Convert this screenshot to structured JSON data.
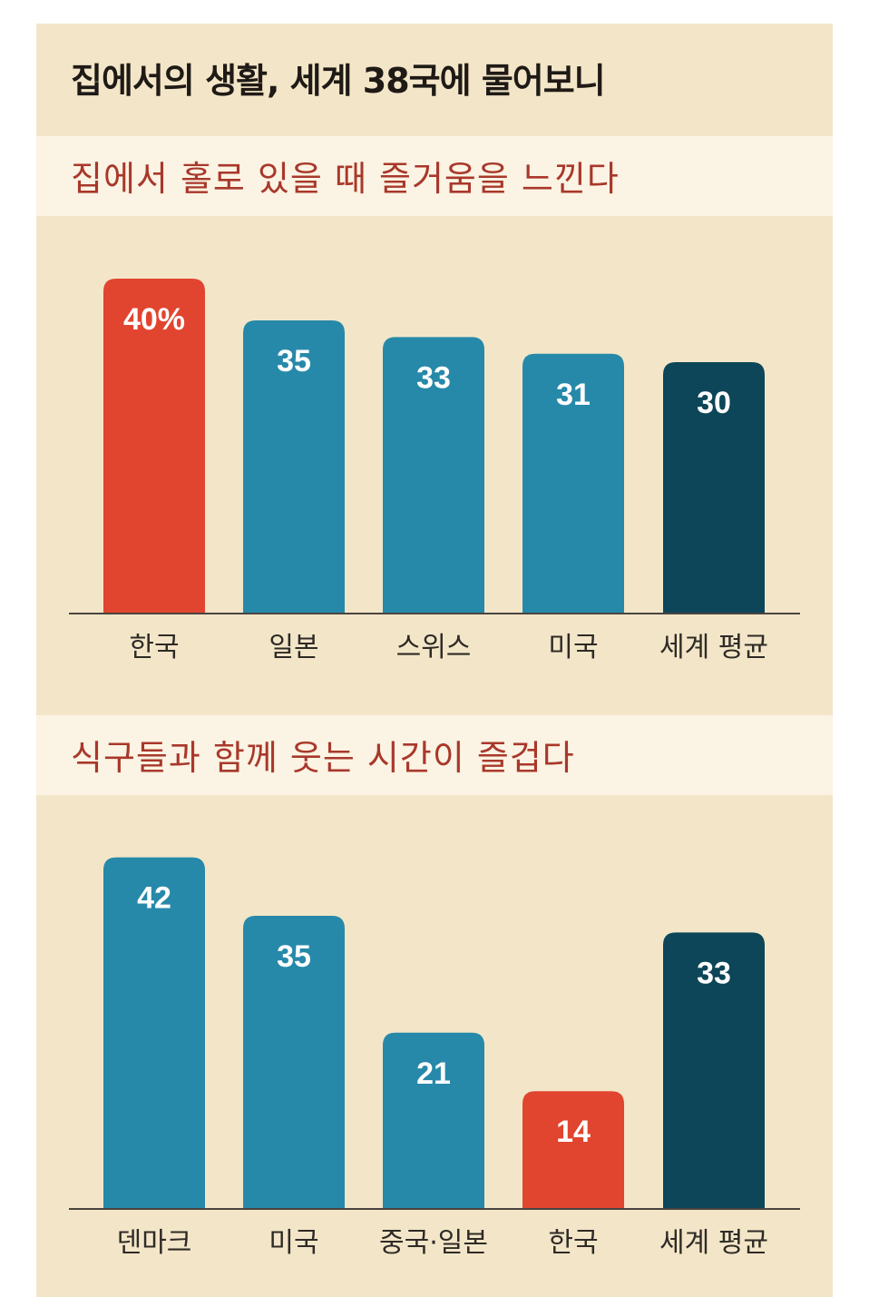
{
  "title": "집에서의 생활, 세계 38국에 물어보니",
  "colors": {
    "highlight": "#e1452f",
    "normal": "#2789a9",
    "average": "#0c4658",
    "background": "#f3e6c8",
    "band": "#fbf3e3",
    "subtitle": "#a8382b"
  },
  "chart_data": [
    {
      "type": "bar",
      "title": "집에서 홀로 있을 때 즐거움을 느낀다",
      "categories": [
        "한국",
        "일본",
        "스위스",
        "미국",
        "세계 평균"
      ],
      "values": [
        40,
        35,
        33,
        31,
        30
      ],
      "data_labels": [
        "40%",
        "35",
        "33",
        "31",
        "30"
      ],
      "bar_styles": [
        "highlight",
        "normal",
        "normal",
        "normal",
        "average"
      ],
      "xlabel": "",
      "ylabel": "",
      "unit": "%",
      "grid": false
    },
    {
      "type": "bar",
      "title": "식구들과 함께 웃는 시간이 즐겁다",
      "categories": [
        "덴마크",
        "미국",
        "중국·일본",
        "한국",
        "세계 평균"
      ],
      "values": [
        42,
        35,
        21,
        14,
        33
      ],
      "data_labels": [
        "42",
        "35",
        "21",
        "14",
        "33"
      ],
      "bar_styles": [
        "normal",
        "normal",
        "normal",
        "highlight",
        "average"
      ],
      "xlabel": "",
      "ylabel": "",
      "unit": "%",
      "grid": false
    }
  ]
}
